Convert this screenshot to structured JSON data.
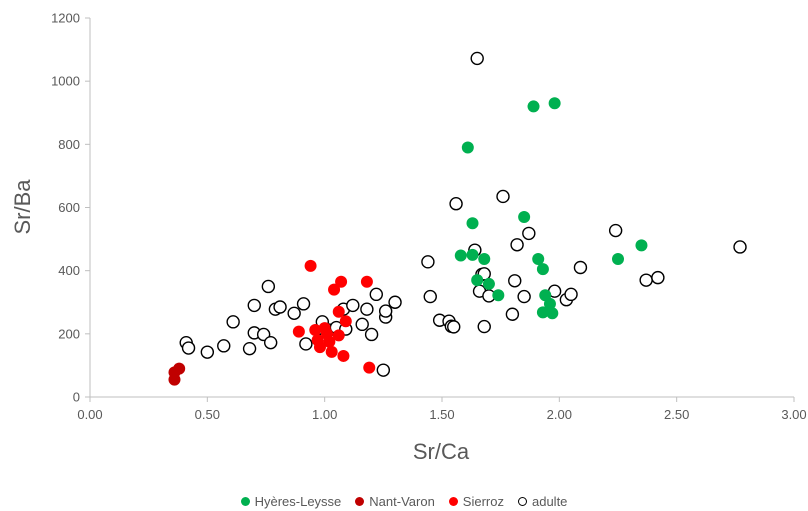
{
  "chart_data": {
    "type": "scatter",
    "xlabel": "Sr/Ca",
    "ylabel": "Sr/Ba",
    "xlim": [
      0,
      3
    ],
    "ylim": [
      0,
      1200
    ],
    "xticks": [
      "0.00",
      "0.50",
      "1.00",
      "1.50",
      "2.00",
      "2.50",
      "3.00"
    ],
    "xtick_values": [
      0,
      0.5,
      1,
      1.5,
      2,
      2.5,
      3
    ],
    "yticks": [
      "0",
      "200",
      "400",
      "600",
      "800",
      "1000",
      "1200"
    ],
    "ytick_values": [
      0,
      200,
      400,
      600,
      800,
      1000,
      1200
    ],
    "grid": false,
    "legend_position": "bottom",
    "series": [
      {
        "name": "adulte",
        "color": "#000000",
        "marker": "open-circle",
        "points": [
          [
            0.41,
            172
          ],
          [
            0.42,
            155
          ],
          [
            0.5,
            142
          ],
          [
            0.57,
            162
          ],
          [
            0.61,
            238
          ],
          [
            0.68,
            153
          ],
          [
            0.7,
            290
          ],
          [
            0.7,
            203
          ],
          [
            0.74,
            198
          ],
          [
            0.76,
            350
          ],
          [
            0.77,
            172
          ],
          [
            0.79,
            278
          ],
          [
            0.81,
            285
          ],
          [
            0.87,
            265
          ],
          [
            0.91,
            295
          ],
          [
            0.92,
            168
          ],
          [
            0.99,
            215
          ],
          [
            0.99,
            238
          ],
          [
            1.0,
            185
          ],
          [
            1.02,
            212
          ],
          [
            1.05,
            220
          ],
          [
            1.08,
            278
          ],
          [
            1.09,
            215
          ],
          [
            1.12,
            290
          ],
          [
            1.16,
            230
          ],
          [
            1.18,
            278
          ],
          [
            1.2,
            198
          ],
          [
            1.22,
            325
          ],
          [
            1.25,
            85
          ],
          [
            1.26,
            253
          ],
          [
            1.26,
            272
          ],
          [
            1.3,
            300
          ],
          [
            1.44,
            428
          ],
          [
            1.45,
            318
          ],
          [
            1.49,
            243
          ],
          [
            1.53,
            240
          ],
          [
            1.54,
            224
          ],
          [
            1.55,
            222
          ],
          [
            1.56,
            612
          ],
          [
            1.64,
            465
          ],
          [
            1.65,
            1072
          ],
          [
            1.66,
            335
          ],
          [
            1.67,
            388
          ],
          [
            1.68,
            390
          ],
          [
            1.68,
            223
          ],
          [
            1.7,
            320
          ],
          [
            1.76,
            635
          ],
          [
            1.8,
            262
          ],
          [
            1.81,
            368
          ],
          [
            1.82,
            482
          ],
          [
            1.85,
            318
          ],
          [
            1.87,
            518
          ],
          [
            1.98,
            335
          ],
          [
            2.03,
            308
          ],
          [
            2.05,
            325
          ],
          [
            2.09,
            410
          ],
          [
            2.24,
            527
          ],
          [
            2.37,
            370
          ],
          [
            2.42,
            378
          ],
          [
            2.77,
            475
          ]
        ]
      },
      {
        "name": "Sierroz",
        "color": "#ff0000",
        "marker": "filled-circle",
        "points": [
          [
            0.89,
            207
          ],
          [
            0.94,
            415
          ],
          [
            0.96,
            212
          ],
          [
            0.97,
            180
          ],
          [
            0.98,
            158
          ],
          [
            1.0,
            218
          ],
          [
            1.01,
            200
          ],
          [
            1.02,
            175
          ],
          [
            1.03,
            143
          ],
          [
            1.04,
            340
          ],
          [
            1.06,
            195
          ],
          [
            1.06,
            270
          ],
          [
            1.07,
            365
          ],
          [
            1.08,
            130
          ],
          [
            1.09,
            240
          ],
          [
            1.18,
            365
          ],
          [
            1.19,
            93
          ]
        ]
      },
      {
        "name": "Nant-Varon",
        "color": "#c00000",
        "marker": "filled-circle",
        "points": [
          [
            0.36,
            78
          ],
          [
            0.36,
            55
          ],
          [
            0.38,
            90
          ]
        ]
      },
      {
        "name": "Hyères-Leysse",
        "color": "#00b050",
        "marker": "filled-circle",
        "points": [
          [
            1.58,
            448
          ],
          [
            1.61,
            790
          ],
          [
            1.63,
            550
          ],
          [
            1.63,
            450
          ],
          [
            1.65,
            370
          ],
          [
            1.68,
            437
          ],
          [
            1.7,
            358
          ],
          [
            1.74,
            322
          ],
          [
            1.85,
            570
          ],
          [
            1.89,
            920
          ],
          [
            1.91,
            437
          ],
          [
            1.93,
            405
          ],
          [
            1.93,
            268
          ],
          [
            1.94,
            322
          ],
          [
            1.96,
            295
          ],
          [
            1.97,
            265
          ],
          [
            1.98,
            930
          ],
          [
            2.25,
            437
          ],
          [
            2.35,
            480
          ]
        ]
      }
    ]
  },
  "legend": {
    "items": [
      {
        "label": "Hyères-Leysse",
        "color": "#00b050",
        "filled": true
      },
      {
        "label": "Nant-Varon",
        "color": "#c00000",
        "filled": true
      },
      {
        "label": "Sierroz",
        "color": "#ff0000",
        "filled": true
      },
      {
        "label": "adulte",
        "color": "#000000",
        "filled": false
      }
    ]
  }
}
